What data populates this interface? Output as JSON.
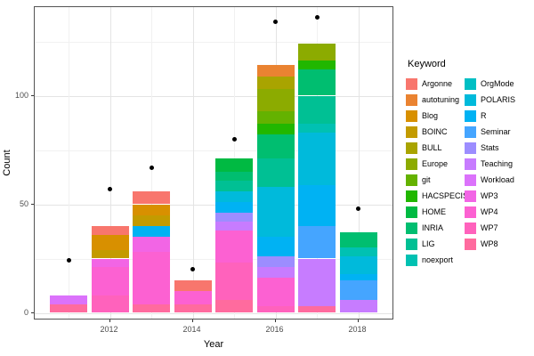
{
  "legend": {
    "title": "Keyword"
  },
  "axes": {
    "x_title": "Year",
    "y_title": "Count",
    "x_tick_labels": [
      "2012",
      "2014",
      "2016",
      "2018"
    ],
    "y_tick_labels": [
      "0",
      "50",
      "100"
    ]
  },
  "chart_data": {
    "type": "bar",
    "stacked": true,
    "title": "",
    "xlabel": "Year",
    "ylabel": "Count",
    "categories": [
      2011,
      2012,
      2013,
      2014,
      2015,
      2016,
      2017,
      2018
    ],
    "x_major_ticks": [
      2012,
      2014,
      2016,
      2018
    ],
    "x_minor_ticks": [
      2011,
      2013,
      2015,
      2017
    ],
    "y_major_ticks": [
      0,
      50,
      100
    ],
    "y_minor_ticks": [
      25,
      75,
      125
    ],
    "ylim": [
      -3.5,
      141
    ],
    "grid": true,
    "legend_position": "right",
    "legend_title": "Keyword",
    "bar_totals": [
      8,
      40,
      56,
      15,
      71,
      114,
      124,
      37
    ],
    "points_series": {
      "name": "total-count-dots",
      "marker": "filled-circle",
      "color": "#000000",
      "values": [
        24,
        57,
        67,
        20,
        80,
        134,
        136,
        48
      ]
    },
    "series": [
      {
        "name": "Argonne",
        "color": "#F8766D",
        "values": [
          0,
          4,
          6,
          5,
          0,
          0,
          0,
          0
        ]
      },
      {
        "name": "autotuning",
        "color": "#EA8331",
        "values": [
          0,
          0,
          0,
          0,
          0,
          5,
          0,
          0
        ]
      },
      {
        "name": "Blog",
        "color": "#D89000",
        "values": [
          0,
          7,
          5,
          0,
          0,
          0,
          0,
          0
        ]
      },
      {
        "name": "BOINC",
        "color": "#C39B00",
        "values": [
          0,
          4,
          5,
          0,
          0,
          0,
          0,
          0
        ]
      },
      {
        "name": "BULL",
        "color": "#A9A400",
        "values": [
          0,
          0,
          0,
          0,
          0,
          6,
          0,
          0
        ]
      },
      {
        "name": "Europe",
        "color": "#8CAB00",
        "values": [
          0,
          0,
          0,
          0,
          0,
          10,
          8,
          0
        ]
      },
      {
        "name": "git",
        "color": "#64B200",
        "values": [
          0,
          0,
          0,
          0,
          0,
          6,
          0,
          0
        ]
      },
      {
        "name": "HACSPECIS",
        "color": "#21B700",
        "values": [
          0,
          0,
          0,
          0,
          0,
          5,
          4,
          0
        ]
      },
      {
        "name": "HOME",
        "color": "#00BA42",
        "values": [
          0,
          0,
          0,
          0,
          6,
          0,
          0,
          0
        ]
      },
      {
        "name": "INRIA",
        "color": "#00BE70",
        "values": [
          0,
          0,
          0,
          0,
          4,
          11,
          12,
          7
        ]
      },
      {
        "name": "LIG",
        "color": "#00C094",
        "values": [
          0,
          0,
          0,
          0,
          5,
          13,
          13,
          0
        ]
      },
      {
        "name": "noexport",
        "color": "#00C1B2",
        "values": [
          0,
          0,
          0,
          0,
          0,
          0,
          4,
          4
        ]
      },
      {
        "name": "OrgMode",
        "color": "#00BFC4",
        "values": [
          0,
          0,
          0,
          0,
          0,
          0,
          0,
          0
        ]
      },
      {
        "name": "POLARIS",
        "color": "#00BADB",
        "values": [
          0,
          0,
          0,
          0,
          5,
          23,
          24,
          8
        ]
      },
      {
        "name": "R",
        "color": "#00B2F3",
        "values": [
          0,
          0,
          5,
          0,
          5,
          9,
          19,
          3
        ]
      },
      {
        "name": "Seminar",
        "color": "#45A5FF",
        "values": [
          0,
          0,
          0,
          0,
          0,
          0,
          15,
          9
        ]
      },
      {
        "name": "Stats",
        "color": "#9C8DFF",
        "values": [
          0,
          0,
          0,
          0,
          4,
          5,
          0,
          0
        ]
      },
      {
        "name": "Teaching",
        "color": "#C77CFF",
        "values": [
          0,
          0,
          0,
          0,
          4,
          5,
          22,
          6
        ]
      },
      {
        "name": "Workload",
        "color": "#DB72FB",
        "values": [
          4,
          0,
          0,
          0,
          0,
          0,
          0,
          0
        ]
      },
      {
        "name": "WP3",
        "color": "#F265E5",
        "values": [
          0,
          4,
          7,
          0,
          0,
          0,
          0,
          0
        ]
      },
      {
        "name": "WP4",
        "color": "#FC61D2",
        "values": [
          0,
          13,
          24,
          6,
          15,
          13,
          0,
          0
        ]
      },
      {
        "name": "WP7",
        "color": "#FF62BC",
        "values": [
          0,
          8,
          0,
          0,
          17,
          3,
          0,
          0
        ]
      },
      {
        "name": "WP8",
        "color": "#FF6B9E",
        "values": [
          4,
          0,
          4,
          4,
          6,
          0,
          3,
          0
        ]
      }
    ]
  }
}
